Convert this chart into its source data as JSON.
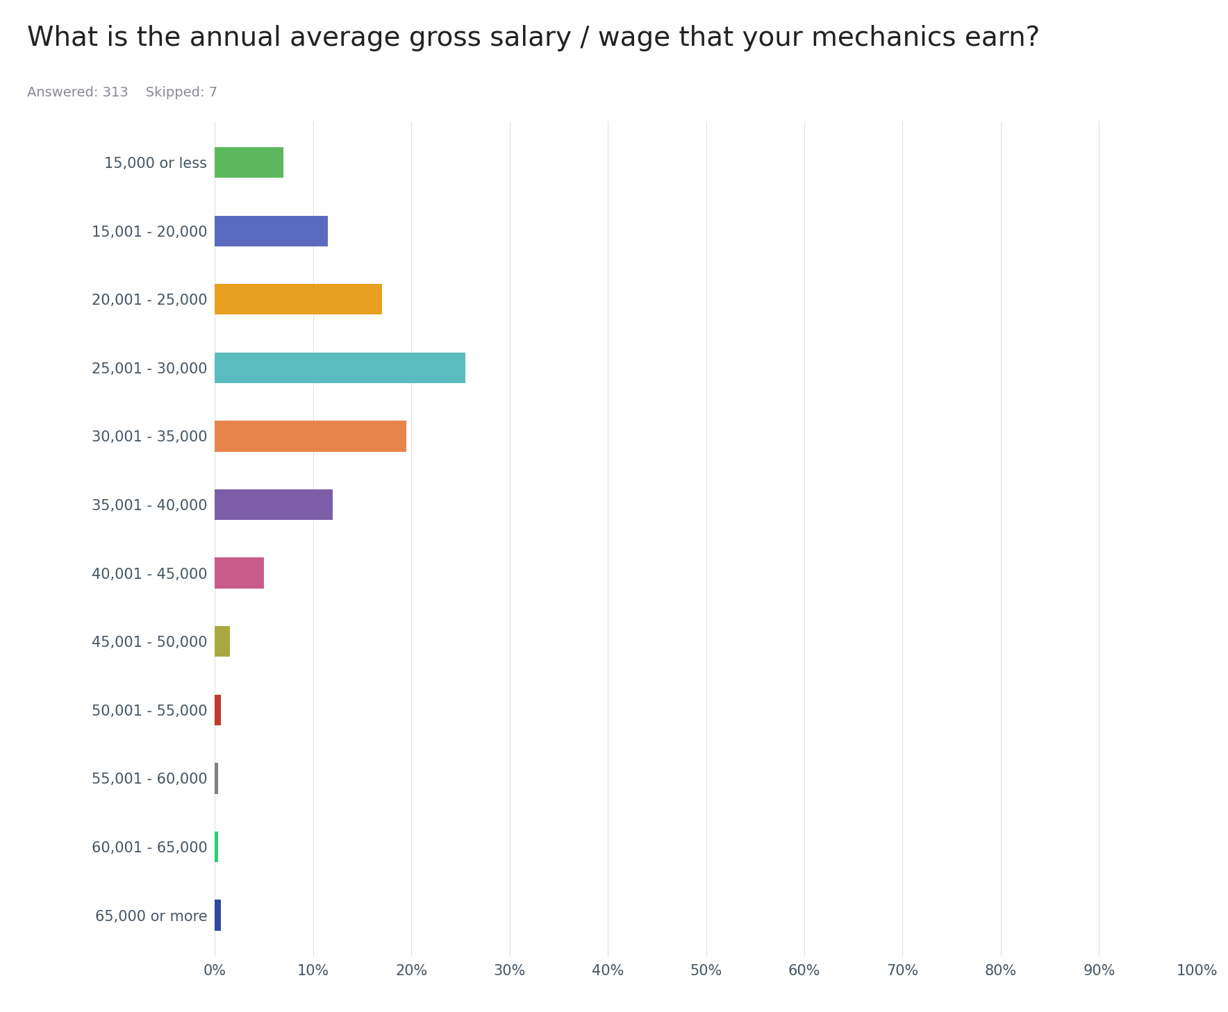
{
  "title": "What is the annual average gross salary / wage that your mechanics earn?",
  "subtitle_answered": "Answered: 313",
  "subtitle_skipped": "Skipped: 7",
  "categories": [
    "15,000 or less",
    "15,001 - 20,000",
    "20,001 - 25,000",
    "25,001 - 30,000",
    "30,001 - 35,000",
    "35,001 - 40,000",
    "40,001 - 45,000",
    "45,001 - 50,000",
    "50,001 - 55,000",
    "55,001 - 60,000",
    "60,001 - 65,000",
    "65,000 or more"
  ],
  "values": [
    7.0,
    11.5,
    17.0,
    25.5,
    19.5,
    12.0,
    5.0,
    1.5,
    0.6,
    0.3,
    0.3,
    0.6
  ],
  "bar_colors": [
    "#5cb85c",
    "#5b6abf",
    "#e8a020",
    "#5bbcbf",
    "#e8844a",
    "#7b5ea7",
    "#c75c8a",
    "#a8a840",
    "#c0392b",
    "#808080",
    "#2ecc71",
    "#2c4a9e"
  ],
  "background_color": "#ffffff",
  "title_fontsize": 28,
  "subtitle_fontsize": 14,
  "tick_label_fontsize": 15,
  "title_color": "#222222",
  "subtitle_color": "#888899",
  "tick_label_color": "#445566",
  "gridline_color": "#e0e0e0",
  "xlim": [
    0,
    100
  ],
  "xticks": [
    0,
    10,
    20,
    30,
    40,
    50,
    60,
    70,
    80,
    90,
    100
  ],
  "xtick_labels": [
    "0%",
    "10%",
    "20%",
    "30%",
    "40%",
    "50%",
    "60%",
    "70%",
    "80%",
    "90%",
    "100%"
  ]
}
